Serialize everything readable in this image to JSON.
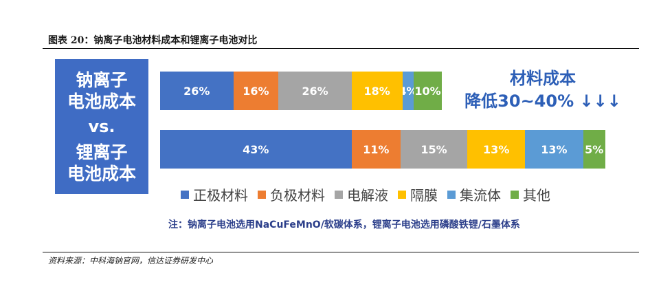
{
  "figure": {
    "title": "图表 20：钠离子电池材料成本和锂离子电池对比",
    "source": "资料来源：中科海钠官网，信达证券研发中心"
  },
  "left_box": {
    "line1": "钠离子",
    "line2": "电池成本",
    "vs": "vs.",
    "line3": "锂离子",
    "line4": "电池成本"
  },
  "callout": {
    "line1": "材料成本",
    "line2": "降低30~40% ↓↓↓"
  },
  "note": "注：钠离子电池选用NaCuFeMnO/软碳体系，锂离子电池选用磷酸铁锂/石墨体系",
  "colors": {
    "正极材料": "#4472c4",
    "负极材料": "#ed7d31",
    "电解液": "#a5a5a5",
    "隔膜": "#ffc000",
    "集流体": "#5b9bd5",
    "其他": "#70ad47"
  },
  "chart_data": {
    "type": "bar",
    "orientation": "horizontal",
    "stacked": true,
    "categories": [
      "钠离子电池成本",
      "锂离子电池成本"
    ],
    "legend_position": "bottom",
    "series": [
      {
        "name": "正极材料",
        "values": [
          26,
          43
        ],
        "labels": [
          "26%",
          "43%"
        ]
      },
      {
        "name": "负极材料",
        "values": [
          16,
          11
        ],
        "labels": [
          "16%",
          "11%"
        ]
      },
      {
        "name": "电解液",
        "values": [
          26,
          15
        ],
        "labels": [
          "26%",
          "15%"
        ]
      },
      {
        "name": "隔膜",
        "values": [
          18,
          13
        ],
        "labels": [
          "18%",
          "13%"
        ]
      },
      {
        "name": "集流体",
        "values": [
          4,
          13
        ],
        "labels": [
          "4%",
          "13%"
        ]
      },
      {
        "name": "其他",
        "values": [
          10,
          5
        ],
        "labels": [
          "10%",
          "5%"
        ]
      }
    ]
  }
}
